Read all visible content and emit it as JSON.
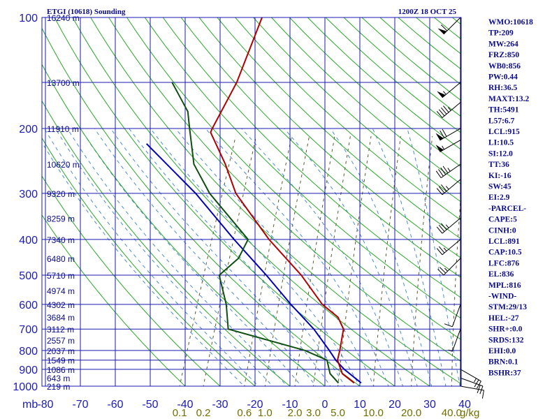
{
  "colors": {
    "grid": "#1a1ab0",
    "dry_adiabat": "#2aa82a",
    "moist_adiabat": "#4a8ad8",
    "mixing_ratio": "#5a5a30",
    "temperature": "#b00000",
    "dewpoint": "#0f4f0f",
    "parcel": "#0000b4",
    "text": "#0a0a8c"
  },
  "chart_data": {
    "type": "skew-t",
    "title": "ETGI (10618) Sounding",
    "valid_time": "1200Z 18 OCT 25",
    "pressure_unit": "mb",
    "mixing_ratio_unit": "g/kg",
    "pressure_levels": [
      100,
      200,
      300,
      400,
      500,
      600,
      700,
      800,
      900,
      1000
    ],
    "pressure_labels": [
      "100",
      "200",
      "300",
      "400",
      "500",
      "600",
      "700",
      "800",
      "900",
      "1000"
    ],
    "temperature_ticks": [
      -80,
      -70,
      -60,
      -50,
      -40,
      -30,
      -20,
      -10,
      0,
      10,
      20,
      30,
      40
    ],
    "temperature_labels": [
      "-80",
      "-70",
      "-60",
      "-50",
      "-40",
      "-30",
      "-20",
      "-10",
      "0",
      "10",
      "20",
      "30",
      "40"
    ],
    "mixing_ratios": [
      0.1,
      0.2,
      0.6,
      1.0,
      2.0,
      3.0,
      5.0,
      10.0,
      20.0,
      40.0
    ],
    "mixing_ratio_labels": [
      "0.1",
      "0.2",
      "0.6",
      "1.0",
      "2.0",
      "3.0",
      "5.0",
      "10.0",
      "20.0",
      "40.0"
    ],
    "heights": [
      {
        "p": 100,
        "label": "16240 m"
      },
      {
        "p": 150,
        "label": "13700 m"
      },
      {
        "p": 200,
        "label": "11910 m"
      },
      {
        "p": 250,
        "label": "10620 m"
      },
      {
        "p": 300,
        "label": "9320 m"
      },
      {
        "p": 350,
        "label": "8259 m"
      },
      {
        "p": 400,
        "label": "7340 m"
      },
      {
        "p": 450,
        "label": "6480 m"
      },
      {
        "p": 500,
        "label": "5710 m"
      },
      {
        "p": 550,
        "label": "4974 m"
      },
      {
        "p": 600,
        "label": "4302 m"
      },
      {
        "p": 650,
        "label": "3684 m"
      },
      {
        "p": 700,
        "label": "3112 m"
      },
      {
        "p": 750,
        "label": "2557 m"
      },
      {
        "p": 800,
        "label": "2037 m"
      },
      {
        "p": 850,
        "label": "1549 m"
      },
      {
        "p": 900,
        "label": "1086 m"
      },
      {
        "p": 950,
        "label": "643 m"
      },
      {
        "p": 1000,
        "label": "219 m"
      }
    ],
    "temperature": [
      {
        "p": 980,
        "t": 8.0
      },
      {
        "p": 925,
        "t": 3.5
      },
      {
        "p": 850,
        "t": 0.5
      },
      {
        "p": 800,
        "t": 0.0
      },
      {
        "p": 700,
        "t": -1.5
      },
      {
        "p": 650,
        "t": -4.5
      },
      {
        "p": 600,
        "t": -10.5
      },
      {
        "p": 500,
        "t": -20.0
      },
      {
        "p": 400,
        "t": -33.5
      },
      {
        "p": 300,
        "t": -48.5
      },
      {
        "p": 250,
        "t": -55.0
      },
      {
        "p": 205,
        "t": -63.0
      },
      {
        "p": 200,
        "t": -63.0
      },
      {
        "p": 150,
        "t": -61.5
      },
      {
        "p": 100,
        "t": -62.0
      }
    ],
    "dewpoint": [
      {
        "p": 980,
        "t": 3.5
      },
      {
        "p": 925,
        "t": 0.0
      },
      {
        "p": 850,
        "t": -2.5
      },
      {
        "p": 800,
        "t": -10.0
      },
      {
        "p": 700,
        "t": -34.5
      },
      {
        "p": 600,
        "t": -38.0
      },
      {
        "p": 500,
        "t": -43.5
      },
      {
        "p": 450,
        "t": -40.0
      },
      {
        "p": 400,
        "t": -39.5
      },
      {
        "p": 300,
        "t": -56.0
      },
      {
        "p": 250,
        "t": -64.0
      },
      {
        "p": 200,
        "t": -69.5
      },
      {
        "p": 180,
        "t": -72.0
      },
      {
        "p": 150,
        "t": -80.0
      }
    ],
    "parcel_path": [
      {
        "p": 980,
        "t": 10.0
      },
      {
        "p": 900,
        "t": 3.5
      },
      {
        "p": 850,
        "t": 0.0
      },
      {
        "p": 800,
        "t": -3.0
      },
      {
        "p": 700,
        "t": -10.0
      },
      {
        "p": 600,
        "t": -19.5
      },
      {
        "p": 500,
        "t": -30.0
      },
      {
        "p": 400,
        "t": -43.5
      },
      {
        "p": 300,
        "t": -60.0
      },
      {
        "p": 220,
        "t": -80.0
      }
    ],
    "wind_barbs": [
      {
        "p": 100,
        "dir": 225,
        "kts": 60
      },
      {
        "p": 150,
        "dir": 230,
        "kts": 55
      },
      {
        "p": 170,
        "dir": 230,
        "kts": 45
      },
      {
        "p": 200,
        "dir": 240,
        "kts": 70
      },
      {
        "p": 215,
        "dir": 240,
        "kts": 55
      },
      {
        "p": 250,
        "dir": 235,
        "kts": 45
      },
      {
        "p": 275,
        "dir": 230,
        "kts": 35
      },
      {
        "p": 350,
        "dir": 230,
        "kts": 35
      },
      {
        "p": 400,
        "dir": 230,
        "kts": 25
      },
      {
        "p": 450,
        "dir": 225,
        "kts": 25
      },
      {
        "p": 600,
        "dir": 200,
        "kts": 10
      },
      {
        "p": 700,
        "dir": 200,
        "kts": 5
      },
      {
        "p": 900,
        "dir": 120,
        "kts": 25
      },
      {
        "p": 950,
        "dir": 110,
        "kts": 20
      },
      {
        "p": 1000,
        "dir": 100,
        "kts": 10
      }
    ],
    "indices": [
      "WMO:10618",
      "TP:209",
      "MW:264",
      "FRZ:850",
      "WB0:856",
      "PW:0.44",
      "RH:36.5",
      "MAXT:13.2",
      "TH:5491",
      "L57:6.7",
      "LCL:915",
      "LI:10.5",
      "SI:12.0",
      "TT:36",
      "KI:-16",
      "SW:45",
      "EI:2.9",
      "-PARCEL-",
      "CAPE:5",
      "CINH:0",
      "LCL:891",
      "CAP:10.5",
      "LFC:876",
      "EL:836",
      "MPL:816",
      "-WIND-",
      "STM:29/13",
      "HEL:-27",
      "SHR+:0.0",
      "SRDS:132",
      "EHI:0.0",
      "BRN:0.1",
      "BSHR:37"
    ]
  }
}
